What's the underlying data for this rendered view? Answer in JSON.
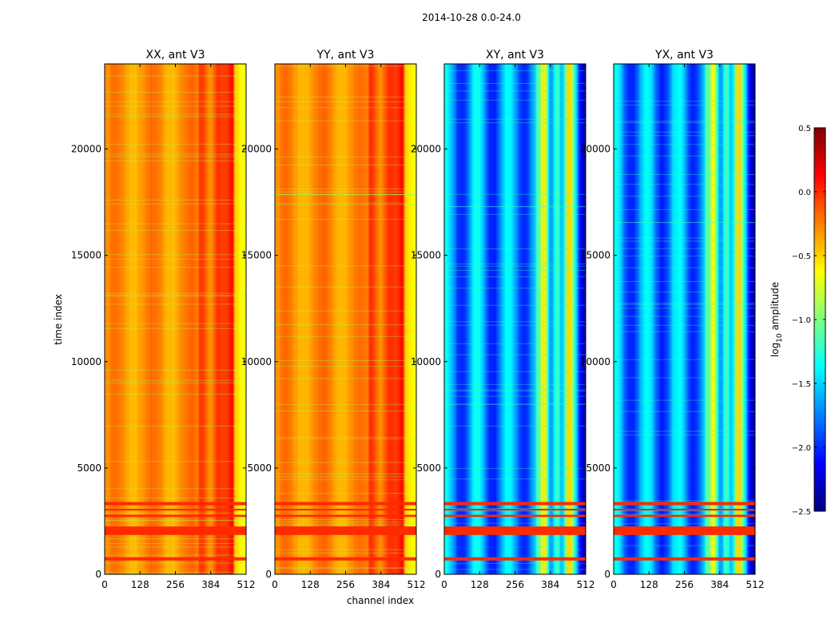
{
  "figure": {
    "suptitle": "2014-10-28 0.0-24.0",
    "colorbar_label_main": "log",
    "colorbar_label_sub": "10",
    "colorbar_label_rest": " amplitude"
  },
  "chart_data": {
    "type": "heatmap",
    "colormap": "jet",
    "xlabel": "channel index",
    "ylabel": "time index",
    "x_range": [
      0,
      512
    ],
    "y_range": [
      0,
      24000
    ],
    "x_ticks": [
      0,
      128,
      256,
      384,
      512
    ],
    "y_ticks": [
      0,
      5000,
      10000,
      15000,
      20000
    ],
    "colorbar": {
      "min": -2.5,
      "max": 0.5,
      "ticks": [
        "−2.5",
        "−2.0",
        "−1.5",
        "−1.0",
        "−0.5",
        "0.0",
        "0.5"
      ],
      "tick_values": [
        -2.5,
        -2.0,
        -1.5,
        -1.0,
        -0.5,
        0.0,
        0.5
      ]
    },
    "panels": [
      {
        "title": "XX, ant V3",
        "base_value": -0.3,
        "type": "auto"
      },
      {
        "title": "YY, ant V3",
        "base_value": -0.3,
        "type": "auto"
      },
      {
        "title": "XY, ant V3",
        "base_value": -1.7,
        "type": "cross"
      },
      {
        "title": "YX, ant V3",
        "base_value": -1.7,
        "type": "cross"
      }
    ],
    "flagged_bands": [
      {
        "t0": 1850,
        "t1": 2250,
        "value": 0.0
      },
      {
        "t0": 650,
        "t1": 800,
        "value": 0.0
      },
      {
        "t0": 3250,
        "t1": 3400,
        "value": 0.0
      },
      {
        "t0": 2700,
        "t1": 2800,
        "value": 0.0
      },
      {
        "t0": 3000,
        "t1": 3080,
        "value": 0.0
      }
    ]
  },
  "colors": {
    "background": "#ffffff",
    "axis": "#000000"
  }
}
